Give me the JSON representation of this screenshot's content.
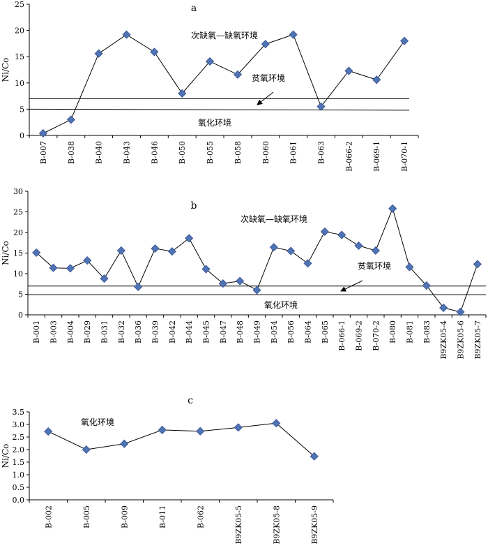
{
  "chart_data": [
    {
      "type": "line",
      "title": "a",
      "ylabel": "Ni/Co",
      "xlabel": "",
      "ylim": [
        0,
        25
      ],
      "yticks": [
        "0",
        "5",
        "10",
        "15",
        "20",
        "25"
      ],
      "categories": [
        "B-007",
        "B-038",
        "B-040",
        "B-043",
        "B-046",
        "B-050",
        "B-055",
        "B-058",
        "B-060",
        "B-061",
        "B-063",
        "B-066-2",
        "B-069-1",
        "B-070-1"
      ],
      "values": [
        0.4,
        3.0,
        15.6,
        19.2,
        15.9,
        8.0,
        14.1,
        11.6,
        17.4,
        19.2,
        5.5,
        12.3,
        10.6,
        18.0
      ],
      "threshold_lines": [
        7,
        5
      ],
      "annotations": [
        "次缺氧—缺氧环境",
        "贫氧环境",
        "氧化环境"
      ]
    },
    {
      "type": "line",
      "title": "b",
      "ylabel": "Ni/Co",
      "xlabel": "",
      "ylim": [
        0,
        30
      ],
      "yticks": [
        "0",
        "5",
        "10",
        "15",
        "20",
        "25",
        "30"
      ],
      "categories": [
        "B-001",
        "B-003",
        "B-004",
        "B-029",
        "B-031",
        "B-032",
        "B-036",
        "B-039",
        "B-042",
        "B-044",
        "B-045",
        "B-047",
        "B-048",
        "B-049",
        "B-054",
        "B-056",
        "B-064",
        "B-065",
        "B-066-1",
        "B-069-2",
        "B-070-2",
        "B-080",
        "B-081",
        "B-083",
        "B9ZK05-4",
        "B9ZK05-6",
        "B9ZK05-7"
      ],
      "values": [
        15.1,
        11.4,
        11.3,
        13.2,
        8.8,
        15.6,
        6.8,
        16.1,
        15.4,
        18.6,
        11.1,
        7.6,
        8.2,
        6.0,
        16.4,
        15.5,
        12.5,
        20.2,
        19.4,
        16.8,
        15.6,
        25.8,
        11.6,
        7.1,
        1.7,
        0.7,
        12.3
      ],
      "threshold_lines": [
        7,
        4.9
      ],
      "annotations": [
        "次缺氧—缺氧环境",
        "贫氧环境",
        "氧化环境"
      ]
    },
    {
      "type": "line",
      "title": "c",
      "ylabel": "Ni/Co",
      "xlabel": "",
      "ylim": [
        0,
        3.5
      ],
      "yticks": [
        "0.0",
        "0.5",
        "1.0",
        "1.5",
        "2.0",
        "2.5",
        "3.0",
        "3.5"
      ],
      "categories": [
        "B-002",
        "B-005",
        "B-009",
        "B-011",
        "B-062",
        "B9ZK05-5",
        "B9ZK05-8",
        "B9ZK05-9"
      ],
      "values": [
        2.72,
        2.0,
        2.23,
        2.78,
        2.73,
        2.88,
        3.05,
        1.73
      ],
      "threshold_lines": [],
      "annotations": [
        "氧化环境"
      ]
    }
  ],
  "style": {
    "marker_color": "#5073b5",
    "marker_edge": "#34538f",
    "line_color": "#000000"
  }
}
